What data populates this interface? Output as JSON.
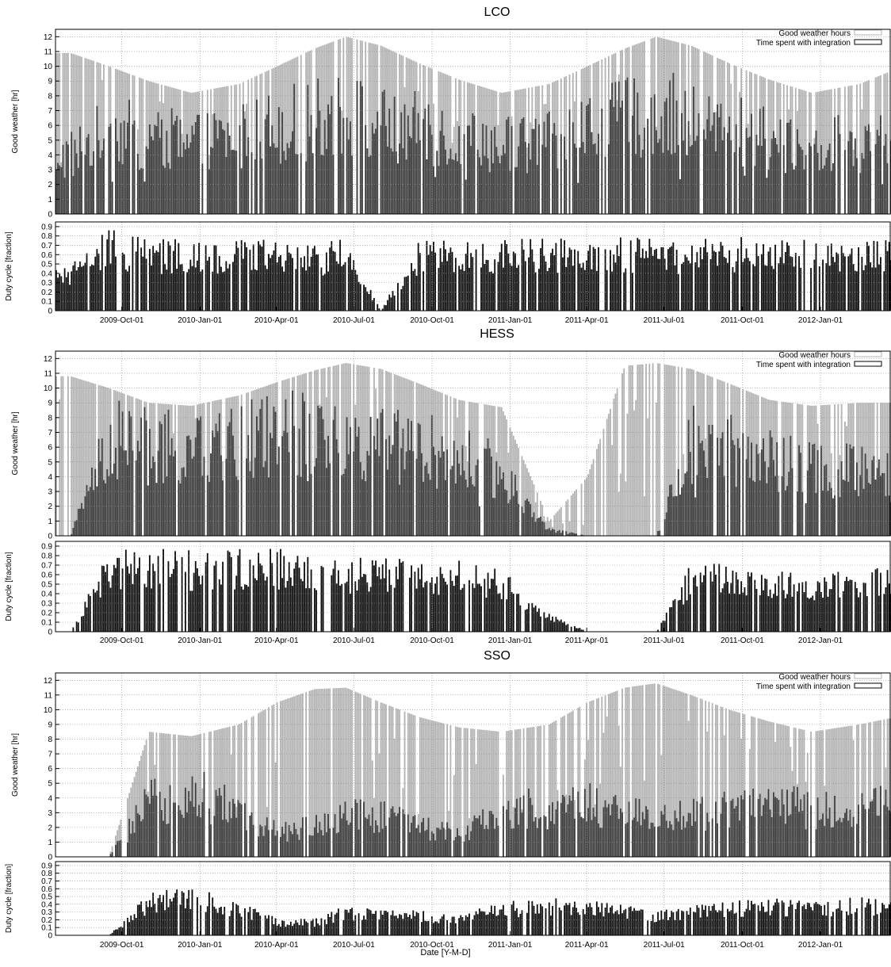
{
  "figure": {
    "xlabel": "Date [Y-M-D]"
  },
  "colors": {
    "good_weather": "#b3b3b3",
    "integration": "#3d3d3d",
    "duty": "#0d0d0d",
    "grid": "#8c8c8c"
  },
  "chart_data": [
    {
      "title": "LCO",
      "type": "bar",
      "upper": {
        "ylabel": "Good weather [hr]",
        "ylim": [
          0,
          12.5
        ],
        "yticks": [
          "0",
          "1",
          "2",
          "3",
          "4",
          "5",
          "6",
          "7",
          "8",
          "9",
          "10",
          "11",
          "12"
        ],
        "legend": {
          "placement": "top-right",
          "entries": [
            "Good weather hours",
            "Time spent with integration"
          ]
        },
        "series": [
          {
            "name": "Good weather hours",
            "x": [
              "2009-08-01",
              "2009-09-15",
              "2009-11-01",
              "2009-12-21",
              "2010-02-15",
              "2010-04-01",
              "2010-05-15",
              "2010-06-21",
              "2010-08-01",
              "2010-09-15",
              "2010-11-01",
              "2010-12-21",
              "2011-02-15",
              "2011-04-01",
              "2011-05-15",
              "2011-06-21",
              "2011-08-01",
              "2011-09-15",
              "2011-11-01",
              "2011-12-21",
              "2012-02-15",
              "2012-03-20"
            ],
            "y": [
              10.9,
              10.0,
              9.0,
              8.2,
              8.8,
              10.0,
              11.2,
              12.0,
              11.4,
              10.2,
              9.1,
              8.2,
              8.8,
              10.0,
              11.2,
              12.0,
              11.4,
              10.2,
              9.1,
              8.2,
              8.8,
              9.6
            ]
          },
          {
            "name": "Time spent with integration",
            "x": [
              "2009-08-01",
              "2009-09-15",
              "2009-11-01",
              "2009-12-21",
              "2010-02-15",
              "2010-04-01",
              "2010-05-15",
              "2010-06-21",
              "2010-08-01",
              "2010-09-15",
              "2010-11-01",
              "2010-12-21",
              "2011-02-15",
              "2011-04-01",
              "2011-05-15",
              "2011-06-21",
              "2011-08-01",
              "2011-09-15",
              "2011-11-01",
              "2011-12-21",
              "2012-02-15",
              "2012-03-20"
            ],
            "y": [
              5.0,
              7.0,
              6.5,
              6.0,
              6.5,
              7.5,
              8.0,
              8.5,
              7.5,
              7.2,
              6.5,
              6.0,
              6.2,
              7.2,
              8.0,
              8.5,
              8.2,
              7.2,
              6.5,
              5.8,
              6.0,
              6.5
            ]
          }
        ]
      },
      "lower": {
        "ylabel": "Duty cycle [fraction]",
        "ylim": [
          0,
          0.95
        ],
        "yticks": [
          "0",
          "0.1",
          "0.2",
          "0.3",
          "0.4",
          "0.5",
          "0.6",
          "0.7",
          "0.8",
          "0.9"
        ],
        "series": [
          {
            "name": "",
            "x": [
              "2009-08-01",
              "2009-09-15",
              "2009-11-01",
              "2009-12-21",
              "2010-02-15",
              "2010-04-01",
              "2010-05-15",
              "2010-06-21",
              "2010-08-01",
              "2010-09-15",
              "2010-11-01",
              "2010-12-21",
              "2011-02-15",
              "2011-04-01",
              "2011-05-15",
              "2011-06-21",
              "2011-08-01",
              "2011-09-15",
              "2011-11-01",
              "2011-12-21",
              "2012-02-15",
              "2012-03-20"
            ],
            "y": [
              0.45,
              0.8,
              0.7,
              0.72,
              0.7,
              0.75,
              0.65,
              0.72,
              0.0,
              0.72,
              0.72,
              0.72,
              0.71,
              0.72,
              0.72,
              0.7,
              0.7,
              0.72,
              0.73,
              0.72,
              0.7,
              0.7
            ]
          }
        ]
      }
    },
    {
      "title": "HESS",
      "type": "bar",
      "upper": {
        "ylabel": "Good weather [hr]",
        "ylim": [
          0,
          12.5
        ],
        "yticks": [
          "0",
          "1",
          "2",
          "3",
          "4",
          "5",
          "6",
          "7",
          "8",
          "9",
          "10",
          "11",
          "12"
        ],
        "legend": {
          "placement": "top-right",
          "entries": [
            "Good weather hours",
            "Time spent with integration"
          ]
        },
        "series": [
          {
            "name": "Good weather hours",
            "x": [
              "2009-08-01",
              "2009-09-15",
              "2009-11-01",
              "2009-12-21",
              "2010-02-15",
              "2010-04-01",
              "2010-05-15",
              "2010-06-21",
              "2010-08-01",
              "2010-09-15",
              "2010-11-01",
              "2010-12-21",
              "2011-02-15",
              "2011-04-01",
              "2011-05-15",
              "2011-06-21",
              "2011-08-01",
              "2011-09-15",
              "2011-11-01",
              "2011-12-21",
              "2012-02-15",
              "2012-03-20"
            ],
            "y": [
              10.8,
              10.0,
              9.0,
              8.8,
              9.5,
              10.4,
              11.2,
              11.7,
              11.3,
              10.3,
              9.2,
              8.7,
              1.0,
              4.0,
              11.5,
              11.7,
              11.3,
              10.3,
              9.2,
              8.8,
              9.0,
              9.0
            ]
          },
          {
            "name": "Time spent with integration",
            "x": [
              "2009-08-01",
              "2009-09-15",
              "2009-11-01",
              "2009-12-21",
              "2010-02-15",
              "2010-04-01",
              "2010-05-15",
              "2010-06-21",
              "2010-08-01",
              "2010-09-15",
              "2010-11-01",
              "2010-12-21",
              "2011-02-15",
              "2011-04-01",
              "2011-05-15",
              "2011-06-21",
              "2011-08-01",
              "2011-09-15",
              "2011-11-01",
              "2011-12-21",
              "2012-02-15",
              "2012-03-20"
            ],
            "y": [
              0.0,
              8.2,
              7.8,
              7.0,
              7.8,
              8.8,
              8.5,
              8.6,
              7.8,
              7.5,
              6.5,
              5.5,
              0.5,
              0.0,
              0.0,
              0.0,
              7.8,
              7.2,
              6.5,
              5.5,
              5.5,
              5.0
            ]
          }
        ]
      },
      "lower": {
        "ylabel": "Duty cycle [fraction]",
        "ylim": [
          0,
          0.95
        ],
        "yticks": [
          "0",
          "0.1",
          "0.2",
          "0.3",
          "0.4",
          "0.5",
          "0.6",
          "0.7",
          "0.8",
          "0.9"
        ],
        "series": [
          {
            "name": "",
            "x": [
              "2009-08-01",
              "2009-09-15",
              "2009-11-01",
              "2009-12-21",
              "2010-02-15",
              "2010-04-01",
              "2010-05-15",
              "2010-06-21",
              "2010-08-01",
              "2010-09-15",
              "2010-11-01",
              "2010-12-21",
              "2011-02-15",
              "2011-04-01",
              "2011-05-15",
              "2011-06-21",
              "2011-08-01",
              "2011-09-15",
              "2011-11-01",
              "2011-12-21",
              "2012-02-15",
              "2012-03-20"
            ],
            "y": [
              0.0,
              0.8,
              0.8,
              0.78,
              0.8,
              0.8,
              0.72,
              0.72,
              0.72,
              0.7,
              0.68,
              0.6,
              0.2,
              0.0,
              0.0,
              0.0,
              0.66,
              0.66,
              0.6,
              0.55,
              0.62,
              0.62
            ]
          }
        ]
      }
    },
    {
      "title": "SSO",
      "type": "bar",
      "upper": {
        "ylabel": "Good weather [hr]",
        "ylim": [
          0,
          12.5
        ],
        "yticks": [
          "0",
          "1",
          "2",
          "3",
          "4",
          "5",
          "6",
          "7",
          "8",
          "9",
          "10",
          "11",
          "12"
        ],
        "legend": {
          "placement": "top-right",
          "entries": [
            "Good weather hours",
            "Time spent with integration"
          ]
        },
        "series": [
          {
            "name": "Good weather hours",
            "x": [
              "2009-08-01",
              "2009-09-15",
              "2009-11-01",
              "2009-12-21",
              "2010-02-15",
              "2010-04-01",
              "2010-05-15",
              "2010-06-21",
              "2010-08-01",
              "2010-09-15",
              "2010-11-01",
              "2010-12-21",
              "2011-02-15",
              "2011-04-01",
              "2011-05-15",
              "2011-06-21",
              "2011-08-01",
              "2011-09-15",
              "2011-11-01",
              "2011-12-21",
              "2012-02-15",
              "2012-03-20"
            ],
            "y": [
              0.0,
              0.0,
              8.5,
              8.2,
              9.0,
              10.5,
              11.4,
              11.5,
              10.5,
              9.5,
              8.8,
              8.5,
              9.0,
              10.5,
              11.5,
              11.8,
              11.0,
              10.0,
              9.2,
              8.5,
              9.0,
              9.4
            ]
          },
          {
            "name": "Time spent with integration",
            "x": [
              "2009-08-01",
              "2009-09-15",
              "2009-11-01",
              "2009-12-21",
              "2010-02-15",
              "2010-04-01",
              "2010-05-15",
              "2010-06-21",
              "2010-08-01",
              "2010-09-15",
              "2010-11-01",
              "2010-12-21",
              "2011-02-15",
              "2011-04-01",
              "2011-05-15",
              "2011-06-21",
              "2011-08-01",
              "2011-09-15",
              "2011-11-01",
              "2011-12-21",
              "2012-02-15",
              "2012-03-20"
            ],
            "y": [
              0.0,
              0.0,
              4.5,
              5.5,
              4.0,
              2.2,
              2.5,
              4.0,
              3.5,
              2.5,
              2.0,
              3.5,
              4.5,
              4.5,
              3.5,
              3.5,
              3.5,
              4.0,
              4.5,
              4.0,
              4.0,
              4.5
            ]
          }
        ]
      },
      "lower": {
        "ylabel": "Duty cycle [fraction]",
        "ylim": [
          0,
          0.95
        ],
        "yticks": [
          "0",
          "0.1",
          "0.2",
          "0.3",
          "0.4",
          "0.5",
          "0.6",
          "0.7",
          "0.8",
          "0.9"
        ],
        "series": [
          {
            "name": "",
            "x": [
              "2009-08-01",
              "2009-09-15",
              "2009-11-01",
              "2009-12-21",
              "2010-02-15",
              "2010-04-01",
              "2010-05-15",
              "2010-06-21",
              "2010-08-01",
              "2010-09-15",
              "2010-11-01",
              "2010-12-21",
              "2011-02-15",
              "2011-04-01",
              "2011-05-15",
              "2011-06-21",
              "2011-08-01",
              "2011-09-15",
              "2011-11-01",
              "2011-12-21",
              "2012-02-15",
              "2012-03-20"
            ],
            "y": [
              0.0,
              0.0,
              0.5,
              0.6,
              0.4,
              0.2,
              0.2,
              0.35,
              0.3,
              0.3,
              0.25,
              0.4,
              0.45,
              0.45,
              0.35,
              0.3,
              0.35,
              0.4,
              0.45,
              0.4,
              0.45,
              0.45
            ]
          }
        ]
      }
    }
  ],
  "xaxis": {
    "range": [
      "2009-07-15",
      "2012-03-24"
    ],
    "ticks": [
      {
        "date": "2009-10-01",
        "label": "2009-Oct-01"
      },
      {
        "date": "2010-01-01",
        "label": "2010-Jan-01"
      },
      {
        "date": "2010-04-01",
        "label": "2010-Apr-01"
      },
      {
        "date": "2010-07-01",
        "label": "2010-Jul-01"
      },
      {
        "date": "2010-10-01",
        "label": "2010-Oct-01"
      },
      {
        "date": "2011-01-01",
        "label": "2011-Jan-01"
      },
      {
        "date": "2011-04-01",
        "label": "2011-Apr-01"
      },
      {
        "date": "2011-07-01",
        "label": "2011-Jul-01"
      },
      {
        "date": "2011-10-01",
        "label": "2011-Oct-01"
      },
      {
        "date": "2012-01-01",
        "label": "2012-Jan-01"
      }
    ],
    "grid": true
  }
}
